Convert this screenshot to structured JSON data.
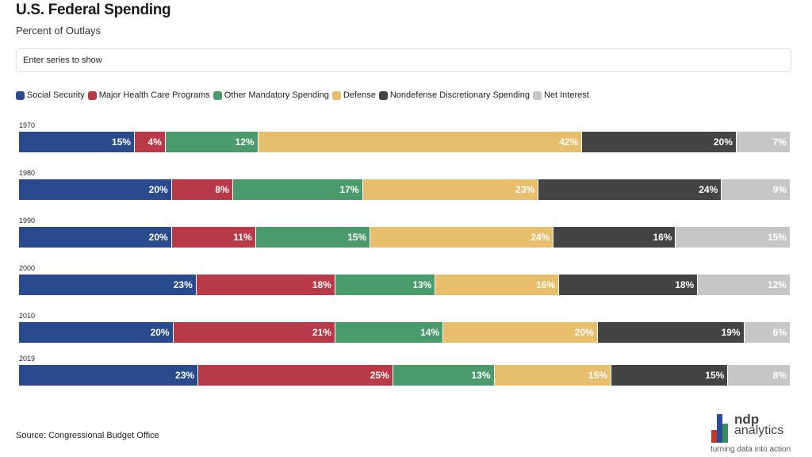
{
  "header": {
    "title": "U.S. Federal Spending",
    "subtitle": "Percent of Outlays"
  },
  "search": {
    "placeholder": "Enter series to show"
  },
  "source": "Source: Congressional Budget Office",
  "logo": {
    "name_line1": "ndp",
    "name_line2": "analytics",
    "tagline": "turning data into action",
    "colors": [
      "#2a4a9a",
      "#c0392b",
      "#3a8c5a"
    ]
  },
  "chart_data": {
    "type": "bar",
    "orientation": "horizontal",
    "stacked": true,
    "normalized_percent": true,
    "categories": [
      "1970",
      "1980",
      "1990",
      "2000",
      "2010",
      "2019"
    ],
    "series": [
      {
        "name": "Social Security",
        "color": "#2a4a8e",
        "values": [
          15,
          20,
          20,
          23,
          20,
          23
        ],
        "labels": [
          "15%",
          "20%",
          "20%",
          "23%",
          "20%",
          "23%"
        ]
      },
      {
        "name": "Major Health Care Programs",
        "color": "#b83a48",
        "values": [
          4,
          8,
          11,
          18,
          21,
          25
        ],
        "labels": [
          "4%",
          "8%",
          "11%",
          "18%",
          "21%",
          "25%"
        ]
      },
      {
        "name": "Other Mandatory Spending",
        "color": "#4b9a6c",
        "values": [
          12,
          17,
          15,
          13,
          14,
          13
        ],
        "labels": [
          "12%",
          "17%",
          "15%",
          "13%",
          "14%",
          "13%"
        ]
      },
      {
        "name": "Defense",
        "color": "#e7bf6c",
        "values": [
          42,
          23,
          24,
          16,
          20,
          15
        ],
        "labels": [
          "42%",
          "23%",
          "24%",
          "16%",
          "20%",
          "15%"
        ]
      },
      {
        "name": "Nondefense Discretionary Spending",
        "color": "#444444",
        "values": [
          20,
          24,
          16,
          18,
          19,
          15
        ],
        "labels": [
          "20%",
          "24%",
          "16%",
          "18%",
          "19%",
          "15%"
        ]
      },
      {
        "name": "Net Interest",
        "color": "#c6c6c6",
        "values": [
          7,
          9,
          15,
          12,
          6,
          8
        ],
        "labels": [
          "7%",
          "9%",
          "15%",
          "12%",
          "6%",
          "8%"
        ]
      }
    ],
    "legend_position": "top-left",
    "grid": false
  }
}
